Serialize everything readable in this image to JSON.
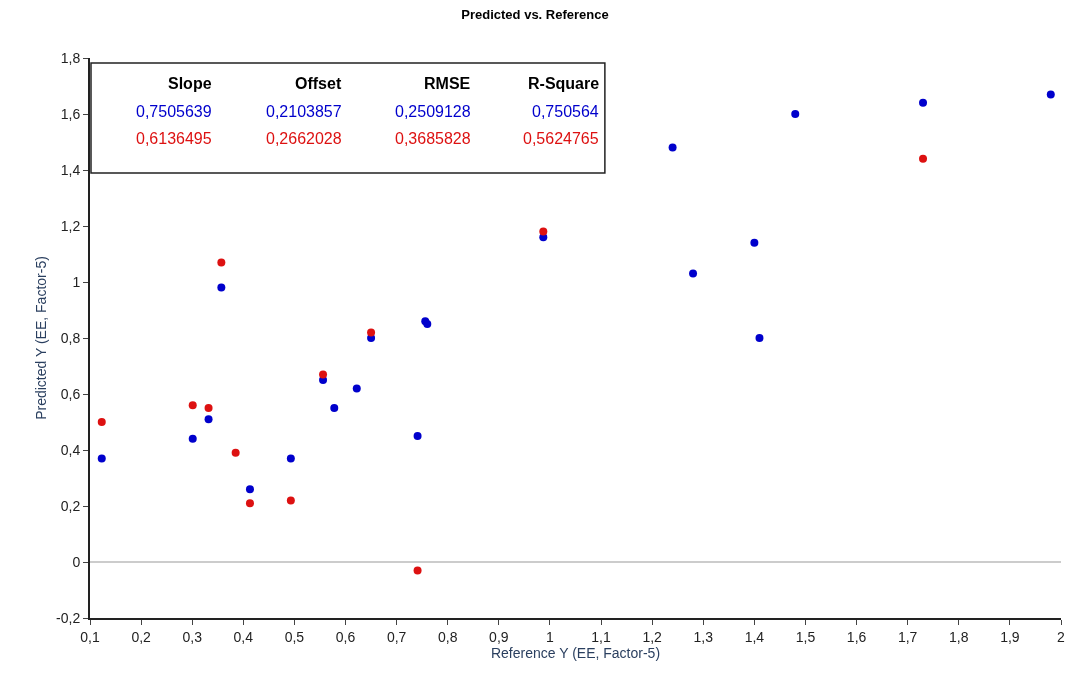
{
  "chart_data": {
    "type": "scatter",
    "title": "Predicted vs. Reference",
    "xlabel": "Reference Y (EE, Factor-5)",
    "ylabel": "Predicted Y (EE, Factor-5)",
    "series": [
      {
        "color": "#0000cc",
        "x": [
          0.123,
          0.301,
          0.332,
          0.413,
          0.493,
          0.556,
          0.578,
          0.622,
          0.65,
          0.741,
          0.756,
          0.76,
          0.357,
          0.987,
          1.24,
          1.28,
          1.4,
          1.41,
          1.48,
          1.73,
          1.98
        ],
        "values": [
          0.37,
          0.44,
          0.51,
          0.26,
          0.37,
          0.65,
          0.55,
          0.62,
          0.8,
          0.45,
          0.86,
          0.85,
          0.98,
          1.16,
          1.48,
          1.03,
          1.14,
          0.8,
          1.6,
          1.64,
          1.67
        ]
      },
      {
        "color": "#dd1111",
        "x": [
          0.123,
          0.301,
          0.332,
          0.385,
          0.413,
          0.493,
          0.556,
          0.65,
          0.741,
          0.357,
          0.987,
          1.73
        ],
        "values": [
          0.5,
          0.56,
          0.55,
          0.39,
          0.21,
          0.22,
          0.67,
          0.82,
          -0.03,
          1.07,
          1.18,
          1.44
        ]
      }
    ],
    "marker": "circle",
    "grid": false,
    "xlim": [
      0.1,
      2
    ],
    "ylim": [
      -0.2,
      1.8
    ],
    "xticks": [
      {
        "value": 0.1,
        "label": "0,1"
      },
      {
        "value": 0.2,
        "label": "0,2"
      },
      {
        "value": 0.3,
        "label": "0,3"
      },
      {
        "value": 0.4,
        "label": "0,4"
      },
      {
        "value": 0.5,
        "label": "0,5"
      },
      {
        "value": 0.6,
        "label": "0,6"
      },
      {
        "value": 0.7,
        "label": "0,7"
      },
      {
        "value": 0.8,
        "label": "0,8"
      },
      {
        "value": 0.9,
        "label": "0,9"
      },
      1,
      {
        "value": 1.1,
        "label": "1,1"
      },
      {
        "value": 1.2,
        "label": "1,2"
      },
      {
        "value": 1.3,
        "label": "1,3"
      },
      {
        "value": 1.4,
        "label": "1,4"
      },
      {
        "value": 1.5,
        "label": "1,5"
      },
      {
        "value": 1.6,
        "label": "1,6"
      },
      {
        "value": 1.7,
        "label": "1,7"
      },
      {
        "value": 1.8,
        "label": "1,8"
      },
      {
        "value": 1.9,
        "label": "1,9"
      },
      2
    ],
    "yticks": [
      {
        "value": -0.2,
        "label": "-0,2"
      },
      0,
      {
        "value": 0.2,
        "label": "0,2"
      },
      {
        "value": 0.4,
        "label": "0,4"
      },
      {
        "value": 0.6,
        "label": "0,6"
      },
      {
        "value": 0.8,
        "label": "0,8"
      },
      1,
      {
        "value": 1.2,
        "label": "1,2"
      },
      {
        "value": 1.4,
        "label": "1,4"
      },
      {
        "value": 1.6,
        "label": "1,6"
      },
      {
        "value": 1.8,
        "label": "1,8"
      }
    ],
    "ref_lines": [
      {
        "axis": "y",
        "value": 0,
        "color": "#999999"
      }
    ],
    "annotations": [
      "Slope",
      "Offset",
      "RMSE",
      "R-Square",
      "0,7505639",
      "0,2103857",
      "0,2509128",
      "0,750564",
      "0,6136495",
      "0,2662028",
      "0,3685828",
      "0,5624765"
    ]
  }
}
